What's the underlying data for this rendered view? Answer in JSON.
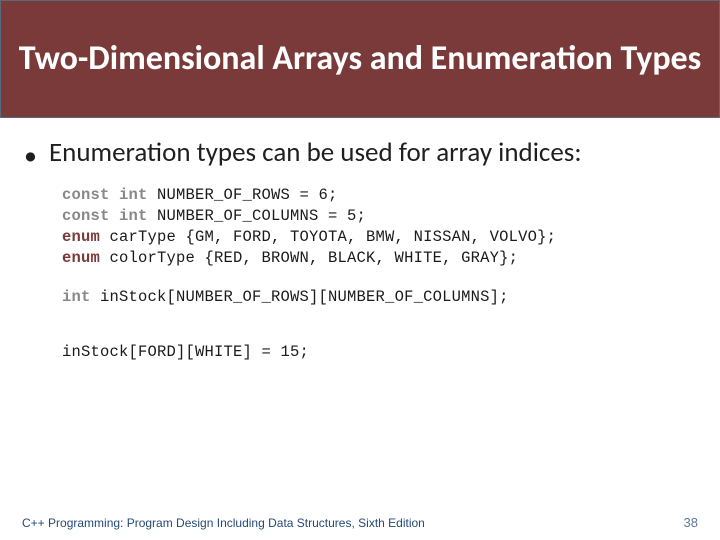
{
  "title": "Two-Dimensional Arrays and Enumeration Types",
  "bullet": {
    "marker": "•",
    "text": "Enumeration types can be used for array indices:"
  },
  "code": {
    "kw_const_int": "const int",
    "kw_enum": "enum",
    "kw_int": "int",
    "line1_rest": " NUMBER_OF_ROWS = 6;",
    "line2_rest": " NUMBER_OF_COLUMNS = 5;",
    "line3_rest": " carType {GM, FORD, TOYOTA, BMW, NISSAN, VOLVO};",
    "line4_rest": " colorType {RED, BROWN, BLACK, WHITE, GRAY};",
    "line5_rest": " inStock[NUMBER_OF_ROWS][NUMBER_OF_COLUMNS];",
    "line6": "inStock[FORD][WHITE] = 15;"
  },
  "footer": {
    "text": "C++ Programming: Program Design Including Data Structures, Sixth Edition",
    "page": "38"
  },
  "colors": {
    "title_bg": "#7a3a3a",
    "title_border": "#5a6a7a",
    "title_fg": "#ffffff",
    "body_text": "#1f1f1f",
    "footer_text": "#244a77",
    "page_num": "#5a7a9a",
    "kw_gray": "#888888",
    "kw_maroon": "#7a3a3a"
  }
}
